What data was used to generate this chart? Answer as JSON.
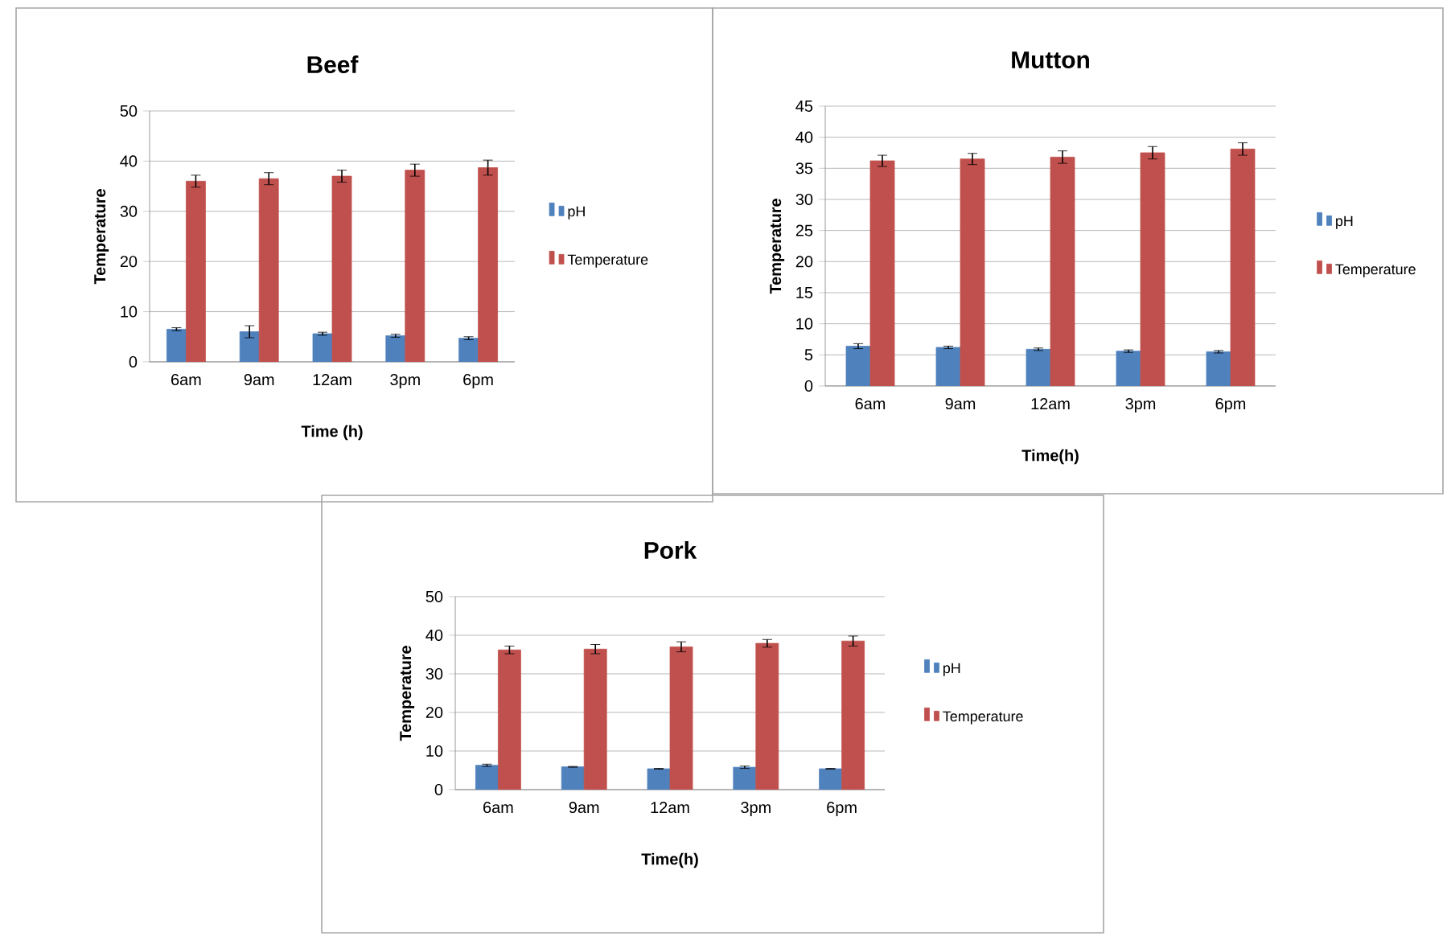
{
  "chart_data": [
    {
      "type": "bar",
      "title": "Beef",
      "xlabel": "Time (h)",
      "ylabel": "Temperature",
      "categories": [
        "6am",
        "9am",
        "12am",
        "3pm",
        "6pm"
      ],
      "ylim": [
        0,
        50
      ],
      "yticks": [
        0,
        10,
        20,
        30,
        40,
        50
      ],
      "grid": "y",
      "legend": "right",
      "series": [
        {
          "name": "pH",
          "color": "#4f81bd",
          "values": [
            6.5,
            6.0,
            5.6,
            5.2,
            4.7
          ],
          "errors": [
            0.3,
            1.2,
            0.3,
            0.3,
            0.3
          ]
        },
        {
          "name": "Temperature",
          "color": "#c0504d",
          "values": [
            36.0,
            36.5,
            37.0,
            38.2,
            38.7
          ],
          "errors": [
            1.2,
            1.2,
            1.2,
            1.2,
            1.5
          ]
        }
      ]
    },
    {
      "type": "bar",
      "title": "Mutton",
      "xlabel": "Time(h)",
      "ylabel": "Temperature",
      "categories": [
        "6am",
        "9am",
        "12am",
        "3pm",
        "6pm"
      ],
      "ylim": [
        0,
        45
      ],
      "yticks": [
        0,
        5,
        10,
        15,
        20,
        25,
        30,
        35,
        40,
        45
      ],
      "grid": "y",
      "legend": "right",
      "series": [
        {
          "name": "pH",
          "color": "#4f81bd",
          "values": [
            6.4,
            6.2,
            5.9,
            5.6,
            5.5
          ],
          "errors": [
            0.4,
            0.2,
            0.2,
            0.2,
            0.2
          ]
        },
        {
          "name": "Temperature",
          "color": "#c0504d",
          "values": [
            36.2,
            36.5,
            36.8,
            37.5,
            38.1
          ],
          "errors": [
            0.9,
            0.9,
            1.0,
            1.0,
            1.0
          ]
        }
      ]
    },
    {
      "type": "bar",
      "title": "Pork",
      "xlabel": "Time(h)",
      "ylabel": "Temperature",
      "categories": [
        "6am",
        "9am",
        "12am",
        "3pm",
        "6pm"
      ],
      "ylim": [
        0,
        50
      ],
      "yticks": [
        0,
        10,
        20,
        30,
        40,
        50
      ],
      "grid": "y",
      "legend": "right",
      "series": [
        {
          "name": "pH",
          "color": "#4f81bd",
          "values": [
            6.3,
            5.9,
            5.4,
            5.8,
            5.4
          ],
          "errors": [
            0.3,
            0.1,
            0.1,
            0.3,
            0.1
          ]
        },
        {
          "name": "Temperature",
          "color": "#c0504d",
          "values": [
            36.2,
            36.4,
            37.0,
            37.9,
            38.5
          ],
          "errors": [
            1.0,
            1.2,
            1.3,
            1.0,
            1.3
          ]
        }
      ]
    }
  ]
}
